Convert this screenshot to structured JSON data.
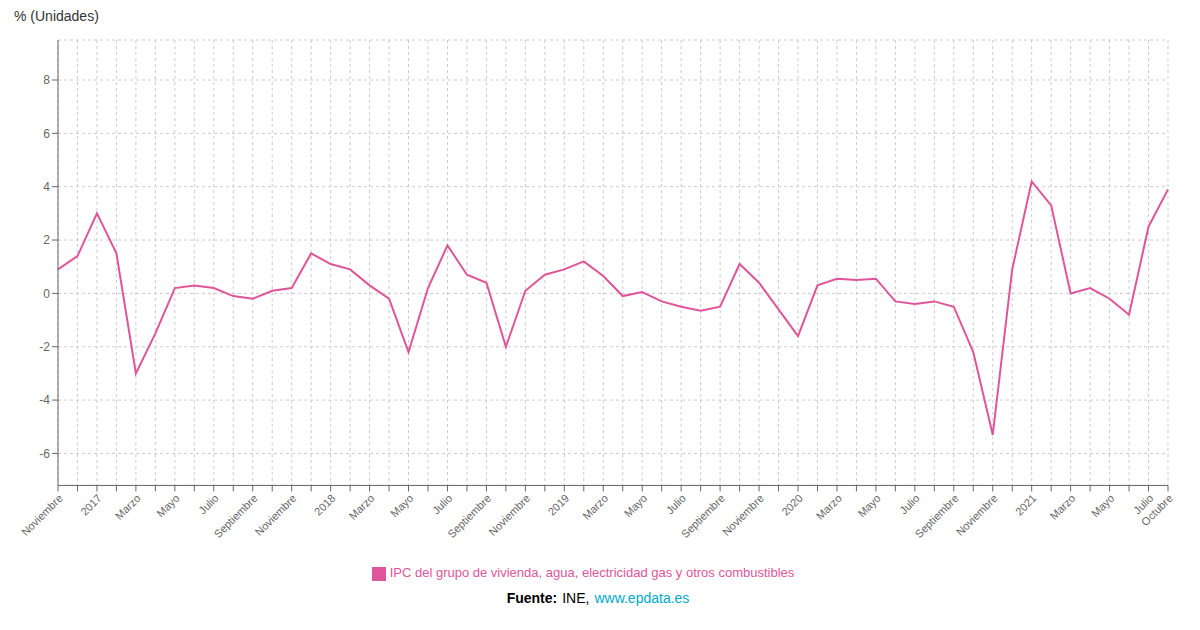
{
  "chart_data": {
    "type": "line",
    "y_label": "% (Unidades)",
    "categories": [
      "Noviembre",
      null,
      "2017",
      null,
      "Marzo",
      null,
      "Mayo",
      null,
      "Julio",
      null,
      "Septiembre",
      null,
      "Noviembre",
      null,
      "2018",
      null,
      "Marzo",
      null,
      "Mayo",
      null,
      "Julio",
      null,
      "Septiembre",
      null,
      "Noviembre",
      null,
      "2019",
      null,
      "Marzo",
      null,
      "Mayo",
      null,
      "Julio",
      null,
      "Septiembre",
      null,
      "Noviembre",
      null,
      "2020",
      null,
      "Marzo",
      null,
      "Mayo",
      null,
      "Julio",
      null,
      "Septiembre",
      null,
      "Noviembre",
      null,
      "2021",
      null,
      "Marzo",
      null,
      "Mayo",
      null,
      "Julio",
      "Octubre"
    ],
    "series": [
      {
        "name": "IPC del grupo de vivienda, agua, electricidad gas y otros combustibles",
        "color": "#e0559a",
        "values": [
          0.9,
          1.4,
          3.0,
          1.5,
          -3.0,
          -1.5,
          0.2,
          0.3,
          0.2,
          -0.1,
          -0.2,
          0.1,
          0.2,
          1.5,
          1.1,
          0.9,
          0.3,
          -0.2,
          -2.2,
          0.2,
          1.8,
          0.7,
          0.4,
          -2.0,
          0.1,
          0.7,
          0.9,
          1.2,
          0.65,
          -0.1,
          0.05,
          -0.3,
          -0.5,
          -0.65,
          -0.5,
          1.1,
          0.4,
          -0.6,
          -1.6,
          0.3,
          0.55,
          0.5,
          0.55,
          -0.3,
          -0.4,
          -0.3,
          -0.5,
          -2.2,
          -5.3,
          0.9,
          4.2,
          3.3,
          0.0,
          0.2,
          -0.2,
          -0.8,
          2.5,
          3.9
        ]
      }
    ],
    "ylim": [
      -7.2,
      9.5
    ],
    "yticks": [
      -6,
      -4,
      -2,
      0,
      2,
      4,
      6,
      8
    ],
    "grid": true,
    "legend": "bottom",
    "annotations": [
      {
        "text": "Fuente:"
      },
      {
        "text": "INE,"
      },
      {
        "text": "www.epdata.es",
        "color": "#00aacc"
      }
    ]
  }
}
